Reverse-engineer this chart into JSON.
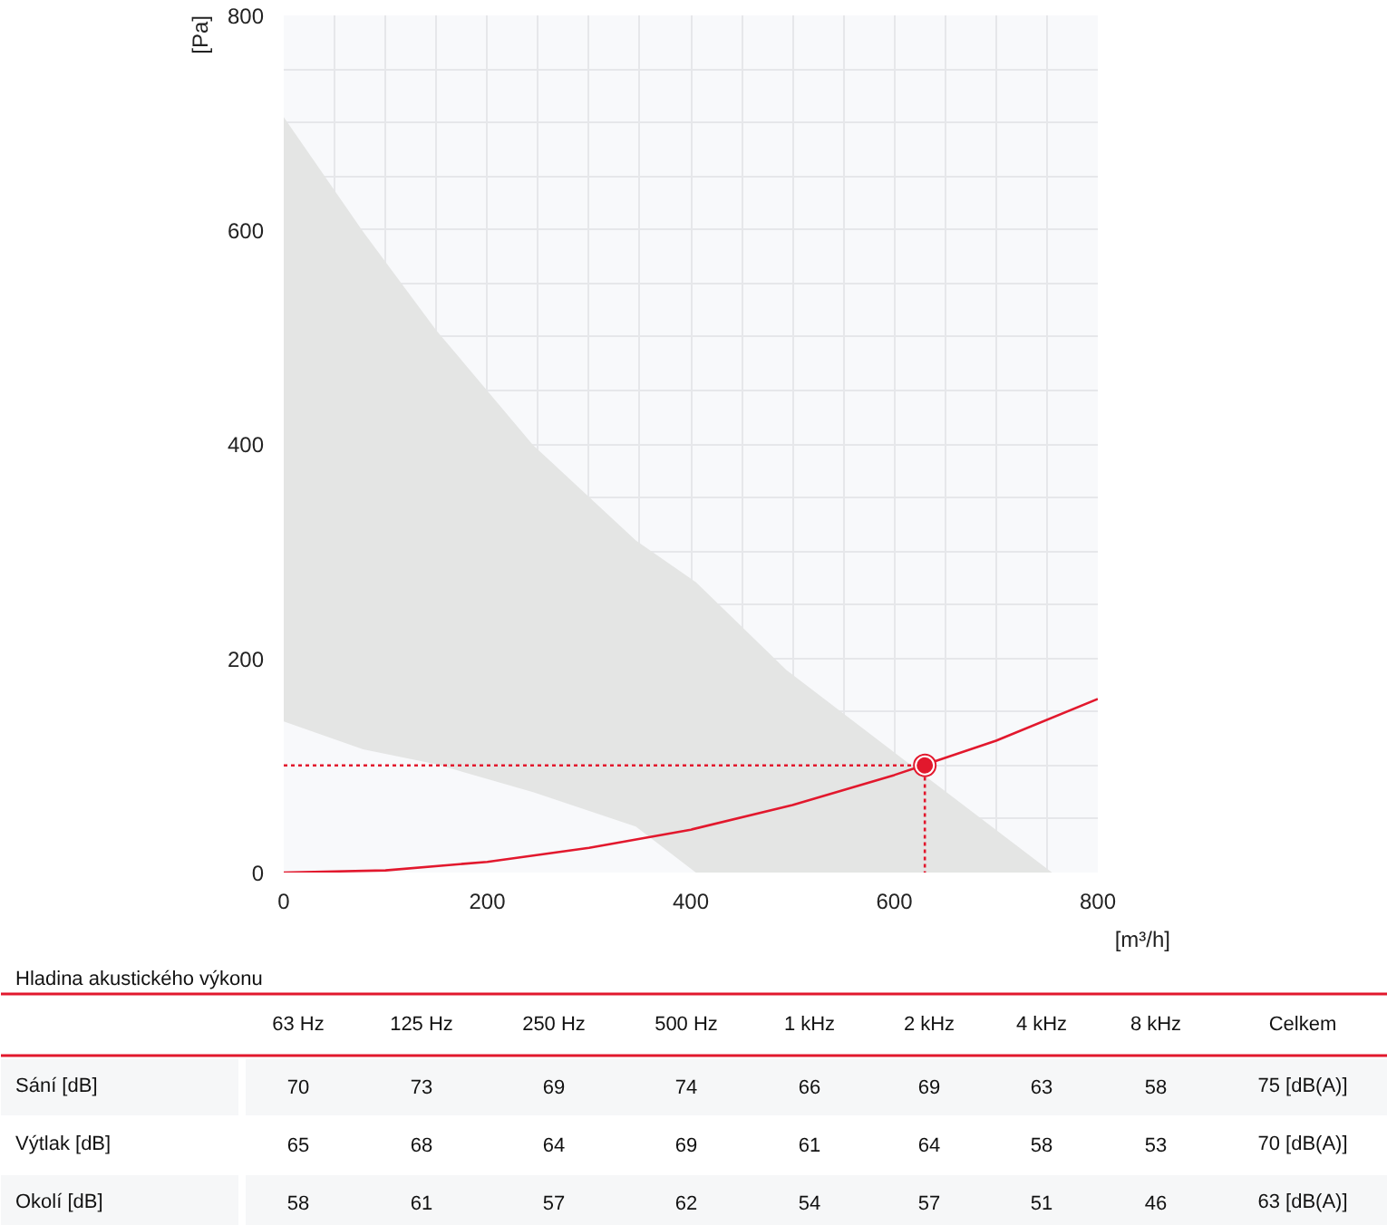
{
  "chart_data": [
    {
      "type": "line",
      "ylabel": "[Pa]",
      "xlabel": "[m³/h]",
      "xlim": [
        0,
        800
      ],
      "ylim": [
        0,
        800
      ],
      "xticks": [
        0,
        {
          "value": 50,
          "label": null
        },
        {
          "value": 100,
          "label": null
        },
        {
          "value": 150,
          "label": null
        },
        200,
        {
          "value": 250,
          "label": null
        },
        {
          "value": 300,
          "label": null
        },
        {
          "value": 350,
          "label": null
        },
        400,
        {
          "value": 450,
          "label": null
        },
        {
          "value": 500,
          "label": null
        },
        {
          "value": 550,
          "label": null
        },
        600,
        {
          "value": 650,
          "label": null
        },
        {
          "value": 700,
          "label": null
        },
        {
          "value": 750,
          "label": null
        },
        800
      ],
      "yticks": [
        0,
        {
          "value": 50,
          "label": null
        },
        {
          "value": 100,
          "label": null
        },
        {
          "value": 150,
          "label": null
        },
        200,
        {
          "value": 250,
          "label": null
        },
        {
          "value": 300,
          "label": null
        },
        {
          "value": 350,
          "label": null
        },
        400,
        {
          "value": 450,
          "label": null
        },
        {
          "value": 500,
          "label": null
        },
        {
          "value": 550,
          "label": null
        },
        600,
        {
          "value": 650,
          "label": null
        },
        {
          "value": 700,
          "label": null
        },
        {
          "value": 750,
          "label": null
        },
        800
      ],
      "grid": true,
      "series": [
        {
          "type": "area",
          "color": "#e4e5e4",
          "x": [
            0,
            78,
            150,
            245,
            346,
            405,
            494,
            643,
            755
          ],
          "values": [
            705,
            598,
            506,
            399,
            310,
            271,
            189,
            81,
            0
          ]
        },
        {
          "type": "area",
          "color": "#f8f9fb",
          "x": [
            0,
            78,
            150,
            245,
            346,
            405
          ],
          "values": [
            141,
            115,
            101,
            75,
            43,
            0
          ]
        },
        {
          "type": "line",
          "color": "#e2182d",
          "x": [
            0,
            100,
            200,
            300,
            400,
            500,
            600,
            700,
            800
          ],
          "values": [
            0,
            2,
            10,
            23,
            40,
            63,
            91,
            123,
            162
          ],
          "marker": "none",
          "line_style": "solid"
        },
        {
          "type": "line",
          "color": "#e2182d",
          "x": [
            0,
            630,
            630
          ],
          "values": [
            100,
            100,
            0
          ],
          "marker": "none",
          "line_style": "dotted"
        },
        {
          "type": "scatter",
          "color": "#e2182d",
          "x": [
            630
          ],
          "values": [
            100
          ],
          "marker": "circle"
        }
      ]
    },
    {
      "type": "other",
      "title": "Hladina akustického výkonu",
      "categories": [
        "63 Hz",
        "125 Hz",
        "250 Hz",
        "500 Hz",
        "1 kHz",
        "2 kHz",
        "4 kHz",
        "8 kHz",
        "Celkem"
      ],
      "y_categories": [
        "Sání [dB]",
        "Výtlak [dB]",
        "Okolí [dB]"
      ],
      "cell_labels": [
        [
          "70",
          "73",
          "69",
          "74",
          "66",
          "69",
          "63",
          "58",
          "75 [dB(A)]"
        ],
        [
          "65",
          "68",
          "64",
          "69",
          "61",
          "64",
          "58",
          "53",
          "70 [dB(A)]"
        ],
        [
          "58",
          "61",
          "57",
          "62",
          "54",
          "57",
          "51",
          "46",
          "63 [dB(A)]"
        ]
      ]
    }
  ]
}
